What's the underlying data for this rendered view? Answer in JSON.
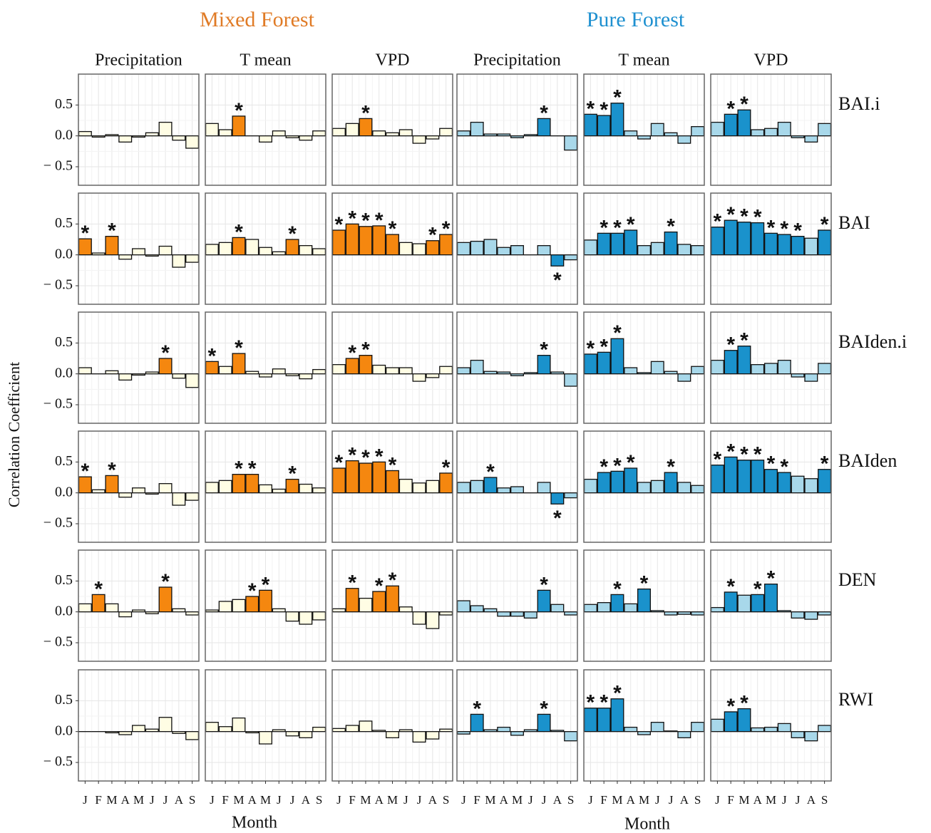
{
  "chart_data": {
    "type": "bar",
    "y_label": "Correlation Coefficient",
    "x_label": "Month",
    "categories": [
      "J",
      "F",
      "M",
      "A",
      "M",
      "J",
      "J",
      "A",
      "S"
    ],
    "ylim": [
      -0.8,
      1.0
    ],
    "yticks": [
      {
        "value": -0.5,
        "label": "− 0.5"
      },
      {
        "value": 0,
        "label": "0.0"
      },
      0.5
    ],
    "grid": true,
    "significance_marker": "*",
    "groups": [
      {
        "name": "Mixed Forest",
        "title_color": "#e07b26",
        "color": "#f5870f",
        "light_color": "#fffde4",
        "variables": [
          "Precipitation",
          "T mean",
          "VPD"
        ]
      },
      {
        "name": "Pure Forest",
        "title_color": "#1e90d0",
        "color": "#1a92cc",
        "light_color": "#a8d8ea",
        "variables": [
          "Precipitation",
          "T mean",
          "VPD"
        ]
      }
    ],
    "rows": [
      "BAI.i",
      "BAI",
      "BAIden.i",
      "BAIden",
      "DEN",
      "RWI"
    ],
    "panels": [
      [
        {
          "values": [
            0.07,
            -0.02,
            0.02,
            -0.1,
            -0.02,
            0.05,
            0.22,
            -0.07,
            -0.2
          ],
          "significant": [
            false,
            false,
            false,
            false,
            false,
            false,
            false,
            false,
            false
          ]
        },
        {
          "values": [
            0.2,
            0.1,
            0.32,
            0.0,
            -0.1,
            0.08,
            -0.03,
            -0.07,
            0.08
          ],
          "significant": [
            false,
            false,
            true,
            false,
            false,
            false,
            false,
            false,
            false
          ]
        },
        {
          "values": [
            0.12,
            0.2,
            0.28,
            0.08,
            0.05,
            0.1,
            -0.12,
            -0.05,
            0.12
          ],
          "significant": [
            false,
            false,
            true,
            false,
            false,
            false,
            false,
            false,
            false
          ]
        },
        {
          "values": [
            0.08,
            0.22,
            0.03,
            0.03,
            -0.03,
            0.02,
            0.28,
            0.0,
            -0.23
          ],
          "significant": [
            false,
            false,
            false,
            false,
            false,
            false,
            true,
            false,
            false
          ]
        },
        {
          "values": [
            0.35,
            0.33,
            0.53,
            0.08,
            -0.05,
            0.2,
            0.05,
            -0.12,
            0.15
          ],
          "significant": [
            true,
            true,
            true,
            false,
            false,
            false,
            false,
            false,
            false
          ]
        },
        {
          "values": [
            0.22,
            0.35,
            0.42,
            0.1,
            0.12,
            0.22,
            -0.03,
            -0.1,
            0.2
          ],
          "significant": [
            false,
            true,
            true,
            false,
            false,
            false,
            false,
            false,
            false
          ]
        }
      ],
      [
        {
          "values": [
            0.26,
            0.03,
            0.3,
            -0.07,
            0.1,
            -0.02,
            0.14,
            -0.2,
            -0.12
          ],
          "significant": [
            true,
            false,
            true,
            false,
            false,
            false,
            false,
            false,
            false
          ]
        },
        {
          "values": [
            0.17,
            0.2,
            0.28,
            0.25,
            0.12,
            0.05,
            0.25,
            0.15,
            0.1
          ],
          "significant": [
            false,
            false,
            true,
            false,
            false,
            false,
            true,
            false,
            false
          ]
        },
        {
          "values": [
            0.4,
            0.5,
            0.46,
            0.47,
            0.33,
            0.2,
            0.18,
            0.23,
            0.33
          ],
          "significant": [
            true,
            true,
            true,
            true,
            true,
            false,
            false,
            true,
            true
          ]
        },
        {
          "values": [
            0.2,
            0.22,
            0.25,
            0.12,
            0.15,
            0.0,
            0.15,
            -0.18,
            -0.08
          ],
          "significant": [
            false,
            false,
            false,
            false,
            false,
            false,
            false,
            true,
            false
          ]
        },
        {
          "values": [
            0.24,
            0.35,
            0.35,
            0.4,
            0.15,
            0.2,
            0.37,
            0.17,
            0.15
          ],
          "significant": [
            false,
            true,
            true,
            true,
            false,
            false,
            true,
            false,
            false
          ]
        },
        {
          "values": [
            0.45,
            0.56,
            0.53,
            0.52,
            0.35,
            0.33,
            0.3,
            0.27,
            0.4
          ],
          "significant": [
            true,
            true,
            true,
            true,
            true,
            true,
            true,
            false,
            true
          ]
        }
      ],
      [
        {
          "values": [
            0.1,
            0.0,
            0.05,
            -0.1,
            -0.02,
            0.03,
            0.25,
            -0.07,
            -0.22
          ],
          "significant": [
            false,
            false,
            false,
            false,
            false,
            false,
            true,
            false,
            false
          ]
        },
        {
          "values": [
            0.2,
            0.12,
            0.33,
            0.04,
            -0.05,
            0.08,
            -0.03,
            -0.08,
            0.07
          ],
          "significant": [
            true,
            false,
            true,
            false,
            false,
            false,
            false,
            false,
            false
          ]
        },
        {
          "values": [
            0.15,
            0.25,
            0.3,
            0.14,
            0.1,
            0.1,
            -0.12,
            -0.06,
            0.12
          ],
          "significant": [
            false,
            true,
            true,
            false,
            false,
            false,
            false,
            false,
            false
          ]
        },
        {
          "values": [
            0.1,
            0.22,
            0.04,
            0.03,
            -0.03,
            0.02,
            0.3,
            0.03,
            -0.2
          ],
          "significant": [
            false,
            false,
            false,
            false,
            false,
            false,
            true,
            false,
            false
          ]
        },
        {
          "values": [
            0.32,
            0.35,
            0.57,
            0.1,
            0.02,
            0.2,
            0.04,
            -0.12,
            0.12
          ],
          "significant": [
            true,
            true,
            true,
            false,
            false,
            false,
            false,
            false,
            false
          ]
        },
        {
          "values": [
            0.22,
            0.38,
            0.45,
            0.15,
            0.17,
            0.22,
            -0.05,
            -0.12,
            0.17
          ],
          "significant": [
            false,
            true,
            true,
            false,
            false,
            false,
            false,
            false,
            false
          ]
        }
      ],
      [
        {
          "values": [
            0.26,
            0.05,
            0.28,
            -0.07,
            0.08,
            -0.02,
            0.15,
            -0.2,
            -0.12
          ],
          "significant": [
            true,
            false,
            true,
            false,
            false,
            false,
            false,
            false,
            false
          ]
        },
        {
          "values": [
            0.17,
            0.2,
            0.3,
            0.3,
            0.13,
            0.06,
            0.22,
            0.14,
            0.08
          ],
          "significant": [
            false,
            false,
            true,
            true,
            false,
            false,
            true,
            false,
            false
          ]
        },
        {
          "values": [
            0.4,
            0.52,
            0.48,
            0.5,
            0.36,
            0.22,
            0.16,
            0.2,
            0.32
          ],
          "significant": [
            true,
            true,
            true,
            true,
            true,
            false,
            false,
            false,
            true
          ]
        },
        {
          "values": [
            0.17,
            0.2,
            0.25,
            0.08,
            0.1,
            0.0,
            0.17,
            -0.18,
            -0.08
          ],
          "significant": [
            false,
            false,
            true,
            false,
            false,
            false,
            false,
            true,
            false
          ]
        },
        {
          "values": [
            0.22,
            0.33,
            0.35,
            0.4,
            0.17,
            0.2,
            0.33,
            0.17,
            0.12
          ],
          "significant": [
            false,
            true,
            true,
            true,
            false,
            false,
            true,
            false,
            false
          ]
        },
        {
          "values": [
            0.45,
            0.58,
            0.53,
            0.53,
            0.38,
            0.33,
            0.27,
            0.23,
            0.38
          ],
          "significant": [
            true,
            true,
            true,
            true,
            true,
            true,
            false,
            false,
            true
          ]
        }
      ],
      [
        {
          "values": [
            0.13,
            0.28,
            0.13,
            -0.08,
            0.03,
            -0.03,
            0.4,
            0.05,
            -0.05
          ],
          "significant": [
            false,
            true,
            false,
            false,
            false,
            false,
            true,
            false,
            false
          ]
        },
        {
          "values": [
            0.03,
            0.17,
            0.2,
            0.25,
            0.35,
            0.05,
            -0.15,
            -0.2,
            -0.13
          ],
          "significant": [
            false,
            false,
            false,
            true,
            true,
            false,
            false,
            false,
            false
          ]
        },
        {
          "values": [
            0.05,
            0.38,
            0.22,
            0.33,
            0.42,
            0.08,
            -0.2,
            -0.27,
            -0.05
          ],
          "significant": [
            false,
            true,
            false,
            true,
            true,
            false,
            false,
            false,
            false
          ]
        },
        {
          "values": [
            0.18,
            0.1,
            0.05,
            -0.07,
            -0.07,
            -0.1,
            0.35,
            0.12,
            -0.05
          ],
          "significant": [
            false,
            false,
            false,
            false,
            false,
            false,
            true,
            false,
            false
          ]
        },
        {
          "values": [
            0.12,
            0.15,
            0.28,
            0.13,
            0.37,
            0.02,
            -0.05,
            -0.04,
            -0.05
          ],
          "significant": [
            false,
            false,
            true,
            false,
            true,
            false,
            false,
            false,
            false
          ]
        },
        {
          "values": [
            0.07,
            0.32,
            0.27,
            0.28,
            0.45,
            0.02,
            -0.1,
            -0.12,
            -0.05
          ],
          "significant": [
            false,
            true,
            false,
            true,
            true,
            false,
            false,
            false,
            false
          ]
        }
      ],
      [
        {
          "values": [
            0.0,
            0.0,
            -0.02,
            -0.05,
            0.1,
            0.04,
            0.23,
            -0.03,
            -0.13
          ],
          "significant": [
            false,
            false,
            false,
            false,
            false,
            false,
            false,
            false,
            false
          ]
        },
        {
          "values": [
            0.15,
            0.08,
            0.22,
            -0.02,
            -0.2,
            0.03,
            -0.07,
            -0.1,
            0.07
          ],
          "significant": [
            false,
            false,
            false,
            false,
            false,
            false,
            false,
            false,
            false
          ]
        },
        {
          "values": [
            0.05,
            0.1,
            0.17,
            0.02,
            -0.1,
            0.03,
            -0.17,
            -0.12,
            0.04
          ],
          "significant": [
            false,
            false,
            false,
            false,
            false,
            false,
            false,
            false,
            false
          ]
        },
        {
          "values": [
            -0.04,
            0.28,
            0.03,
            0.07,
            -0.06,
            0.03,
            0.28,
            0.02,
            -0.15
          ],
          "significant": [
            false,
            true,
            false,
            false,
            false,
            false,
            true,
            false,
            false
          ]
        },
        {
          "values": [
            0.38,
            0.38,
            0.53,
            0.07,
            -0.05,
            0.15,
            0.01,
            -0.1,
            0.15
          ],
          "significant": [
            true,
            true,
            true,
            false,
            false,
            false,
            false,
            false,
            false
          ]
        },
        {
          "values": [
            0.2,
            0.32,
            0.37,
            0.06,
            0.07,
            0.13,
            -0.1,
            -0.15,
            0.1
          ],
          "significant": [
            false,
            true,
            true,
            false,
            false,
            false,
            false,
            false,
            false
          ]
        }
      ]
    ]
  }
}
